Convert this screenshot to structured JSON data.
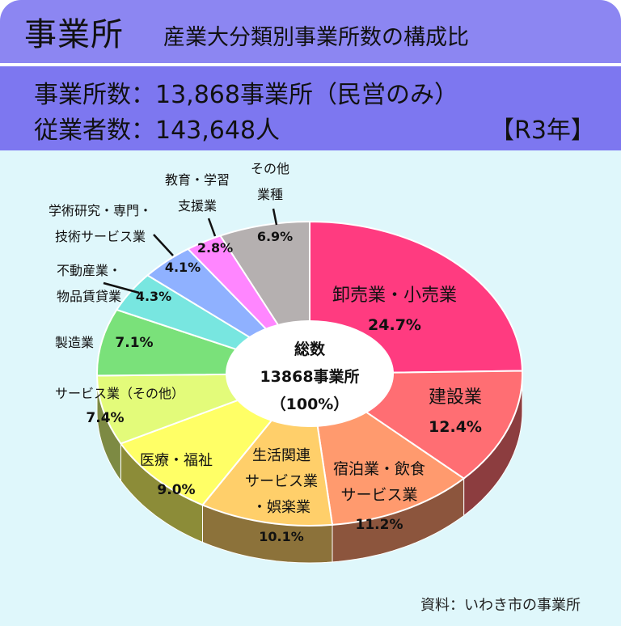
{
  "header": {
    "title": "事業所",
    "subtitle": "産業大分類別事業所数の構成比"
  },
  "info": {
    "count_line": "事業所数：13,868事業所（民営のみ）",
    "workers_line": "従業者数：143,648人",
    "year": "【R3年】"
  },
  "center": {
    "line1": "総数",
    "line2": "13868事業所",
    "line3": "（100%）"
  },
  "source": "資料：いわき市の事業所",
  "chart_data": {
    "type": "pie",
    "title": "産業大分類別事業所数の構成比",
    "total": "13868事業所",
    "slices": [
      {
        "label": "卸売業・小売業",
        "value": 24.7,
        "value_label": "24.7%",
        "color": "#ff3b80"
      },
      {
        "label": "建設業",
        "value": 12.4,
        "value_label": "12.4%",
        "color": "#ff6e73"
      },
      {
        "label": "宿泊業・飲食サービス業",
        "value": 11.2,
        "value_label": "11.2%",
        "color": "#ff9a6e"
      },
      {
        "label": "生活関連サービス業・娯楽業",
        "value": 10.1,
        "value_label": "10.1%",
        "color": "#ffcf6a"
      },
      {
        "label": "医療・福祉",
        "value": 9.0,
        "value_label": "9.0%",
        "color": "#ffff66"
      },
      {
        "label": "サービス業（その他）",
        "value": 7.4,
        "value_label": "7.4%",
        "color": "#e3fb7a"
      },
      {
        "label": "製造業",
        "value": 7.1,
        "value_label": "7.1%",
        "color": "#7ae17a"
      },
      {
        "label": "不動産業・物品賃貸業",
        "value": 4.3,
        "value_label": "4.3%",
        "color": "#78e6e0"
      },
      {
        "label": "学術研究・専門・技術サービス業",
        "value": 4.1,
        "value_label": "4.1%",
        "color": "#8fb1ff"
      },
      {
        "label": "教育・学習支援業",
        "value": 2.8,
        "value_label": "2.8%",
        "color": "#ff86ff"
      },
      {
        "label": "その他業種",
        "value": 6.9,
        "value_label": "6.9%",
        "color": "#b5b0b0"
      }
    ]
  }
}
